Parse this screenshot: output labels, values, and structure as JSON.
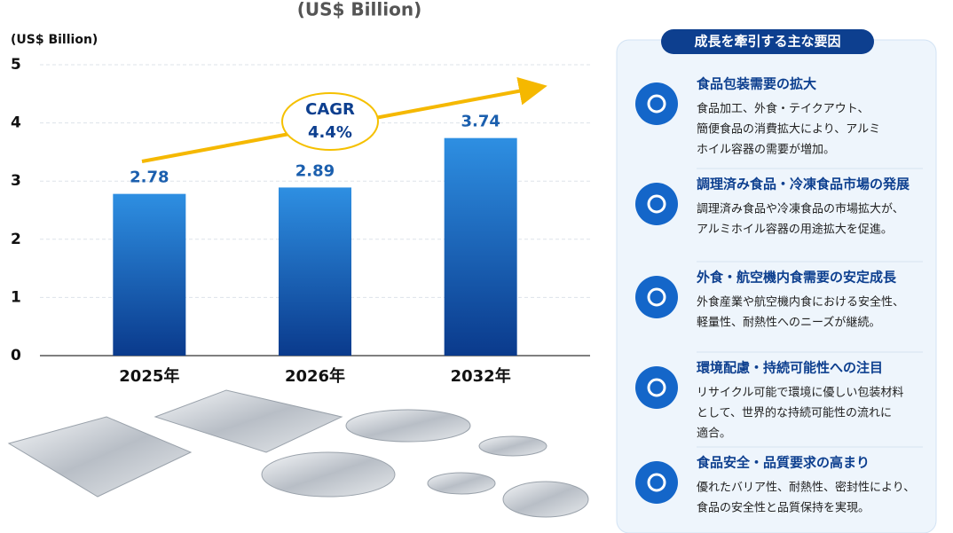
{
  "chart_data": {
    "type": "bar",
    "title": "(US$ Billion)",
    "y_label": "(US$ Billion)",
    "categories": [
      "2025年",
      "2026年",
      "2032年"
    ],
    "values": [
      2.78,
      2.89,
      3.74
    ],
    "ylim": [
      0,
      5
    ],
    "yticks": [
      0,
      1,
      2,
      3,
      4,
      5
    ],
    "grid": true,
    "annotation": {
      "title": "CAGR",
      "value": "4.4%"
    }
  },
  "drivers": {
    "title": "成長を牽引する主な要因",
    "items": [
      {
        "title": "食品包装需要の拡大",
        "lines": [
          "食品加工、外食・テイクアウト、",
          "簡便食品の消費拡大により、アルミ",
          "ホイル容器の需要が増加。"
        ]
      },
      {
        "title": "調理済み食品・冷凍食品市場の発展",
        "lines": [
          "調理済み食品や冷凍食品の市場拡大が、",
          "アルミホイル容器の用途拡大を促進。"
        ]
      },
      {
        "title": "外食・航空機内食需要の安定成長",
        "lines": [
          "外食産業や航空機内食における安全性、",
          "軽量性、耐熱性へのニーズが継続。"
        ]
      },
      {
        "title": "環境配慮・持続可能性への注目",
        "lines": [
          "リサイクル可能で環境に優しい包装材料",
          "として、世界的な持続可能性の流れに",
          "適合。"
        ]
      },
      {
        "title": "食品安全・品質要求の高まり",
        "lines": [
          "優れたバリア性、耐熱性、密封性により、",
          "食品の安全性と品質保持を実現。"
        ]
      }
    ]
  }
}
